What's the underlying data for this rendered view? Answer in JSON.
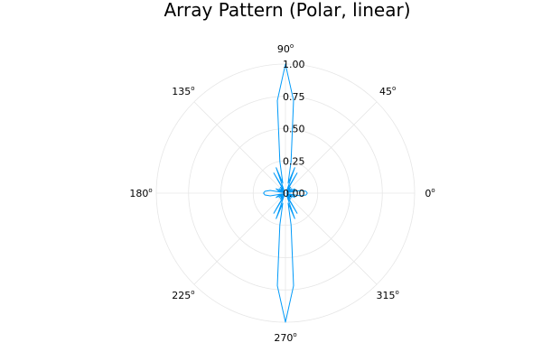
{
  "chart_data": {
    "type": "line",
    "projection": "polar",
    "title": "Array Pattern (Polar, linear)",
    "angle_ticks": [
      {
        "deg": 0,
        "label": "0"
      },
      {
        "deg": 45,
        "label": "45"
      },
      {
        "deg": 90,
        "label": "90"
      },
      {
        "deg": 135,
        "label": "135"
      },
      {
        "deg": 180,
        "label": "180"
      },
      {
        "deg": 225,
        "label": "225"
      },
      {
        "deg": 270,
        "label": "270"
      },
      {
        "deg": 315,
        "label": "315"
      }
    ],
    "angle_unit_symbol": "o",
    "radial_ticks": [
      {
        "value": 0.0,
        "label": "0.00"
      },
      {
        "value": 0.25,
        "label": "0.25"
      },
      {
        "value": 0.5,
        "label": "0.50"
      },
      {
        "value": 0.75,
        "label": "0.75"
      },
      {
        "value": 1.0,
        "label": "1.00"
      }
    ],
    "rlim": [
      0,
      1.0
    ],
    "grid": true,
    "legend": "none",
    "colors": {
      "series": "#009af9",
      "grid": "#e6e6e6"
    },
    "series": [
      {
        "theta_deg": [
          0,
          5,
          10,
          15,
          20,
          25,
          30,
          35,
          40,
          45,
          50,
          55,
          60,
          65,
          70,
          75,
          80,
          85,
          90,
          95,
          100,
          105,
          110,
          115,
          120,
          125,
          130,
          135,
          140,
          145,
          150,
          155,
          160,
          165,
          170,
          175,
          180,
          185,
          190,
          195,
          200,
          205,
          210,
          215,
          220,
          225,
          230,
          235,
          240,
          245,
          250,
          255,
          260,
          265,
          270,
          275,
          280,
          285,
          290,
          295,
          300,
          305,
          310,
          315,
          320,
          325,
          330,
          335,
          340,
          345,
          350,
          355,
          360
        ],
        "r": [
          0.17,
          0.16,
          0.12,
          0.02,
          0.06,
          0.08,
          0.01,
          0.06,
          0.03,
          0.04,
          0.06,
          0.02,
          0.18,
          0.03,
          0.21,
          0.08,
          0.25,
          0.72,
          1.0,
          0.72,
          0.25,
          0.08,
          0.21,
          0.03,
          0.18,
          0.02,
          0.06,
          0.04,
          0.03,
          0.06,
          0.01,
          0.08,
          0.06,
          0.02,
          0.12,
          0.16,
          0.17,
          0.16,
          0.12,
          0.02,
          0.06,
          0.08,
          0.01,
          0.06,
          0.03,
          0.04,
          0.06,
          0.02,
          0.18,
          0.03,
          0.21,
          0.08,
          0.25,
          0.72,
          1.0,
          0.72,
          0.25,
          0.08,
          0.21,
          0.03,
          0.18,
          0.02,
          0.06,
          0.04,
          0.03,
          0.06,
          0.01,
          0.08,
          0.06,
          0.02,
          0.12,
          0.16,
          0.17
        ]
      }
    ]
  }
}
